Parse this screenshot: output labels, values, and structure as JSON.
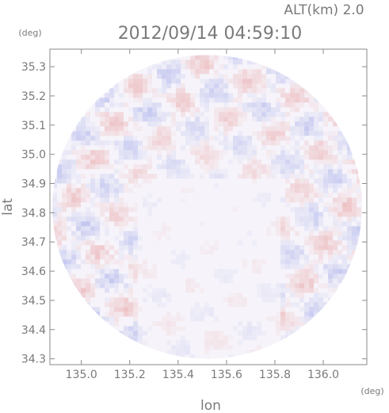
{
  "chart_data": {
    "type": "heatmap",
    "header_alt": "ALT(km) 2.0",
    "title": "2012/09/14 04:59:10",
    "x_unit": "(deg)",
    "y_unit": "(deg)",
    "xlabel": "lon",
    "ylabel": "lat",
    "xlim": [
      134.87,
      136.18
    ],
    "ylim": [
      34.28,
      35.36
    ],
    "x_ticks": [
      135.0,
      135.2,
      135.4,
      135.6,
      135.8,
      136.0
    ],
    "x_tick_labels": [
      "135.0",
      "135.2",
      "135.4",
      "135.6",
      "135.8",
      "136.0"
    ],
    "y_ticks": [
      34.3,
      34.4,
      34.5,
      34.6,
      34.7,
      34.8,
      34.9,
      35.0,
      35.1,
      35.2,
      35.3
    ],
    "y_tick_labels": [
      "34.3",
      "34.4",
      "34.5",
      "34.6",
      "34.7",
      "34.8",
      "34.9",
      "35.0",
      "35.1",
      "35.2",
      "35.3"
    ],
    "domain_center": [
      135.52,
      34.82
    ],
    "domain_radius_lon": 0.64,
    "domain_radius_lat": 0.52,
    "colors": {
      "positive": "#e8a0a0",
      "negative": "#a0a8e8",
      "frame": "#8a8a8a"
    }
  }
}
